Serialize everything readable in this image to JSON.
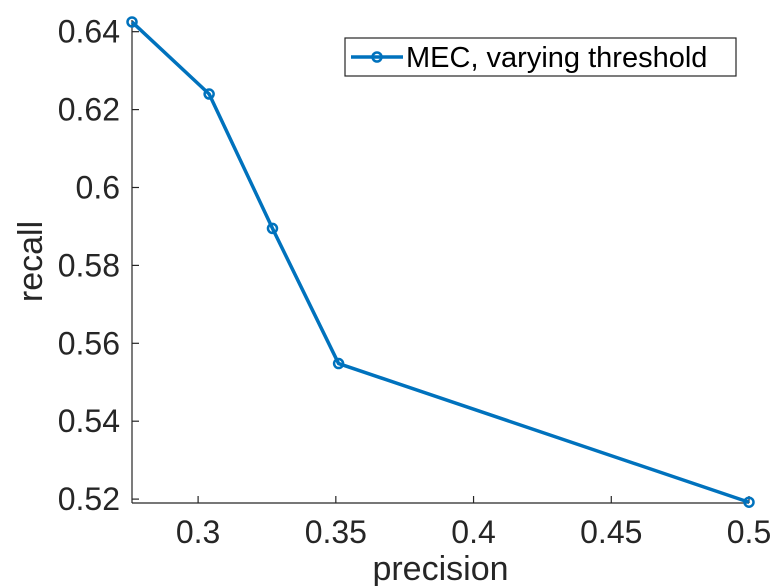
{
  "chart_data": {
    "type": "line",
    "title": "",
    "xlabel": "precision",
    "ylabel": "recall",
    "xlim": [
      0.276,
      0.5
    ],
    "ylim": [
      0.519,
      0.643
    ],
    "x_ticks": [
      0.3,
      0.35,
      0.4,
      0.45,
      0.5
    ],
    "x_tick_labels": [
      "0.3",
      "0.35",
      "0.4",
      "0.45",
      "0.5"
    ],
    "y_ticks": [
      0.52,
      0.54,
      0.56,
      0.58,
      0.6,
      0.62,
      0.64
    ],
    "y_tick_labels": [
      "0.52",
      "0.54",
      "0.56",
      "0.58",
      "0.6",
      "0.62",
      "0.64"
    ],
    "grid": false,
    "legend_position": "top-right",
    "series": [
      {
        "name": "MEC, varying threshold",
        "color": "#0072BD",
        "marker": "circle",
        "x": [
          0.276,
          0.304,
          0.327,
          0.351,
          0.5
        ],
        "y": [
          0.6425,
          0.624,
          0.5895,
          0.5548,
          0.5192
        ]
      }
    ]
  }
}
